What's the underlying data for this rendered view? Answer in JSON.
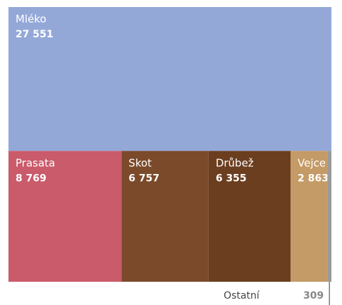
{
  "chart_data": {
    "type": "treemap",
    "categories": [
      "Mléko",
      "Prasata",
      "Skot",
      "Drůbež",
      "Vejce",
      "Ostatní"
    ],
    "values": [
      27551,
      8769,
      6757,
      6355,
      2863,
      309
    ],
    "value_labels": [
      "27 551",
      "8 769",
      "6 757",
      "6 355",
      "2 863",
      "309"
    ],
    "colors": [
      "#94a8d8",
      "#c95b6b",
      "#7b4a2a",
      "#6b3e1f",
      "#c49a66",
      "#9a9a9a"
    ]
  }
}
